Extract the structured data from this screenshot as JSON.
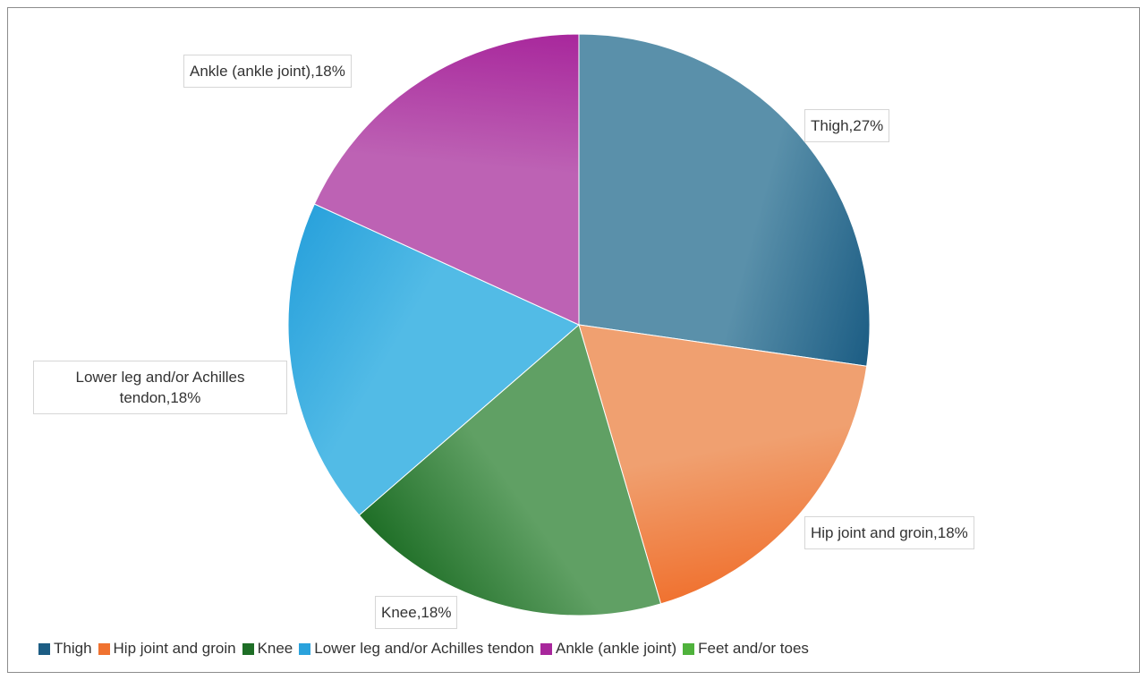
{
  "chart_data": {
    "type": "pie",
    "title": "",
    "series": [
      {
        "name": "Thigh",
        "value": 27,
        "label": "Thigh,27%",
        "color": "#1c5d84",
        "light": "#5a90aa"
      },
      {
        "name": "Hip joint and groin",
        "value": 18,
        "label": "Hip joint and groin,18%",
        "color": "#f07230",
        "light": "#f0a070"
      },
      {
        "name": "Knee",
        "value": 18,
        "label": "Knee,18%",
        "color": "#1e6e26",
        "light": "#60a064"
      },
      {
        "name": "Lower leg and/or Achilles tendon",
        "value": 18,
        "label": "Lower leg and/or Achilles tendon,18%",
        "color": "#2aa2dc",
        "light": "#52bbe6"
      },
      {
        "name": "Ankle (ankle joint)",
        "value": 18,
        "label": "Ankle (ankle joint),18%",
        "color": "#a8279c",
        "light": "#bd62b4"
      },
      {
        "name": "Feet and/or toes",
        "value": 0,
        "label": "",
        "color": "#4fb23c",
        "light": "#4fb23c"
      }
    ],
    "legend_position": "bottom"
  },
  "legend": {
    "items": [
      {
        "label": "Thigh",
        "color": "#1c5d84"
      },
      {
        "label": "Hip joint and groin",
        "color": "#f07230"
      },
      {
        "label": "Knee",
        "color": "#1e6e26"
      },
      {
        "label": "Lower leg and/or Achilles tendon",
        "color": "#2aa2dc"
      },
      {
        "label": "Ankle (ankle joint)",
        "color": "#a8279c"
      },
      {
        "label": "Feet and/or toes",
        "color": "#4fb23c"
      }
    ]
  }
}
